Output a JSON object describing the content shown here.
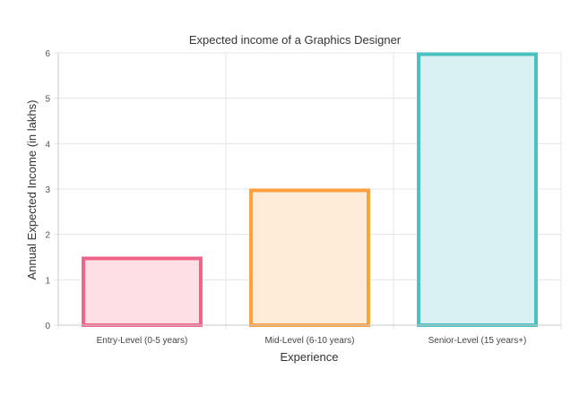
{
  "chart_data": {
    "type": "bar",
    "title": "Expected income of a Graphics Designer",
    "xlabel": "Experience",
    "ylabel": "Annual Expected Income (in lakhs)",
    "categories": [
      "Entry-Level (0-5 years)",
      "Mid-Level (6-10 years)",
      "Senior-Level (15 years+)"
    ],
    "values": [
      1.5,
      3,
      6
    ],
    "ylim": [
      0,
      6
    ],
    "yticks": [
      "0",
      "1",
      "2",
      "3",
      "4",
      "5",
      "6"
    ],
    "grid": true,
    "legend": "none",
    "colors": {
      "border": [
        "#f0648c",
        "#ffa040",
        "#4bc0c0"
      ],
      "fill": [
        "#ffdfe6",
        "#ffecd8",
        "#d9f1f2"
      ]
    }
  }
}
